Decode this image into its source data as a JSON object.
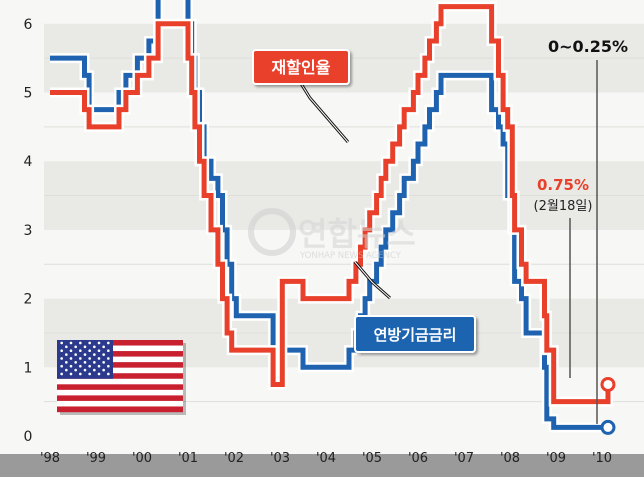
{
  "chart_data": {
    "type": "line",
    "line_style": "step",
    "xlim": [
      1998,
      2010.5
    ],
    "ylim": [
      0,
      6.3
    ],
    "y_ticks": [
      "0",
      "1",
      "2",
      "3",
      "4",
      "5",
      "6"
    ],
    "x_ticks": [
      "'98",
      "'99",
      "'00",
      "'01",
      "'02",
      "'03",
      "'04",
      "'05",
      "'06",
      "'07",
      "'08",
      "'09",
      "'10"
    ],
    "grid": "horizontal bands",
    "series": [
      {
        "name": "재할인율",
        "color": "#e8402a",
        "points": [
          [
            1998.0,
            5.0
          ],
          [
            1998.75,
            4.75
          ],
          [
            1998.85,
            4.5
          ],
          [
            1999.5,
            4.75
          ],
          [
            1999.65,
            5.0
          ],
          [
            1999.9,
            5.25
          ],
          [
            2000.15,
            5.5
          ],
          [
            2000.35,
            6.0
          ],
          [
            2001.0,
            5.5
          ],
          [
            2001.08,
            5.0
          ],
          [
            2001.15,
            4.5
          ],
          [
            2001.25,
            4.0
          ],
          [
            2001.35,
            3.5
          ],
          [
            2001.5,
            3.0
          ],
          [
            2001.65,
            2.5
          ],
          [
            2001.75,
            2.0
          ],
          [
            2001.85,
            1.5
          ],
          [
            2001.95,
            1.25
          ],
          [
            2002.85,
            0.75
          ],
          [
            2003.05,
            2.25
          ],
          [
            2003.5,
            2.0
          ],
          [
            2004.5,
            2.25
          ],
          [
            2004.65,
            2.5
          ],
          [
            2004.75,
            2.75
          ],
          [
            2004.85,
            3.0
          ],
          [
            2004.95,
            3.25
          ],
          [
            2005.1,
            3.5
          ],
          [
            2005.2,
            3.75
          ],
          [
            2005.3,
            4.0
          ],
          [
            2005.45,
            4.25
          ],
          [
            2005.6,
            4.5
          ],
          [
            2005.7,
            4.75
          ],
          [
            2005.9,
            5.0
          ],
          [
            2006.0,
            5.25
          ],
          [
            2006.15,
            5.5
          ],
          [
            2006.25,
            5.75
          ],
          [
            2006.4,
            6.0
          ],
          [
            2006.5,
            6.25
          ],
          [
            2007.6,
            5.75
          ],
          [
            2007.75,
            5.25
          ],
          [
            2007.85,
            4.75
          ],
          [
            2007.95,
            4.5
          ],
          [
            2008.05,
            3.5
          ],
          [
            2008.1,
            3.0
          ],
          [
            2008.25,
            2.5
          ],
          [
            2008.35,
            2.25
          ],
          [
            2008.75,
            1.75
          ],
          [
            2008.8,
            1.25
          ],
          [
            2008.95,
            0.5
          ],
          [
            2010.13,
            0.75
          ]
        ]
      },
      {
        "name": "연방기금금리",
        "color": "#1f63b0",
        "points": [
          [
            1998.0,
            5.5
          ],
          [
            1998.75,
            5.25
          ],
          [
            1998.85,
            4.75
          ],
          [
            1999.5,
            5.0
          ],
          [
            1999.65,
            5.25
          ],
          [
            1999.9,
            5.5
          ],
          [
            2000.15,
            5.75
          ],
          [
            2000.35,
            6.5
          ],
          [
            2001.0,
            6.0
          ],
          [
            2001.08,
            5.5
          ],
          [
            2001.15,
            5.0
          ],
          [
            2001.25,
            4.5
          ],
          [
            2001.35,
            4.0
          ],
          [
            2001.5,
            3.75
          ],
          [
            2001.65,
            3.5
          ],
          [
            2001.75,
            3.0
          ],
          [
            2001.85,
            2.5
          ],
          [
            2001.95,
            2.0
          ],
          [
            2002.05,
            1.75
          ],
          [
            2002.85,
            1.25
          ],
          [
            2003.5,
            1.0
          ],
          [
            2004.5,
            1.25
          ],
          [
            2004.65,
            1.5
          ],
          [
            2004.75,
            1.75
          ],
          [
            2004.85,
            2.0
          ],
          [
            2004.95,
            2.25
          ],
          [
            2005.1,
            2.5
          ],
          [
            2005.2,
            2.75
          ],
          [
            2005.3,
            3.0
          ],
          [
            2005.45,
            3.25
          ],
          [
            2005.6,
            3.5
          ],
          [
            2005.7,
            3.75
          ],
          [
            2005.9,
            4.0
          ],
          [
            2006.0,
            4.25
          ],
          [
            2006.15,
            4.5
          ],
          [
            2006.25,
            4.75
          ],
          [
            2006.4,
            5.0
          ],
          [
            2006.5,
            5.25
          ],
          [
            2007.6,
            4.75
          ],
          [
            2007.75,
            4.5
          ],
          [
            2007.85,
            4.25
          ],
          [
            2007.95,
            3.5
          ],
          [
            2008.05,
            3.0
          ],
          [
            2008.1,
            2.25
          ],
          [
            2008.25,
            2.0
          ],
          [
            2008.35,
            1.5
          ],
          [
            2008.75,
            1.0
          ],
          [
            2008.8,
            0.25
          ],
          [
            2008.95,
            0.125
          ]
        ]
      }
    ],
    "end_x": 2010.13,
    "annotations": {
      "discount_label": "재할인율",
      "fed_label": "연방기금금리",
      "fed_value": "0~0.25%",
      "discount_value": "0.75%",
      "discount_date": "(2월18일)"
    },
    "watermark": "연합뉴스",
    "watermark_sub": "YONHAP NEWS AGENCY"
  }
}
